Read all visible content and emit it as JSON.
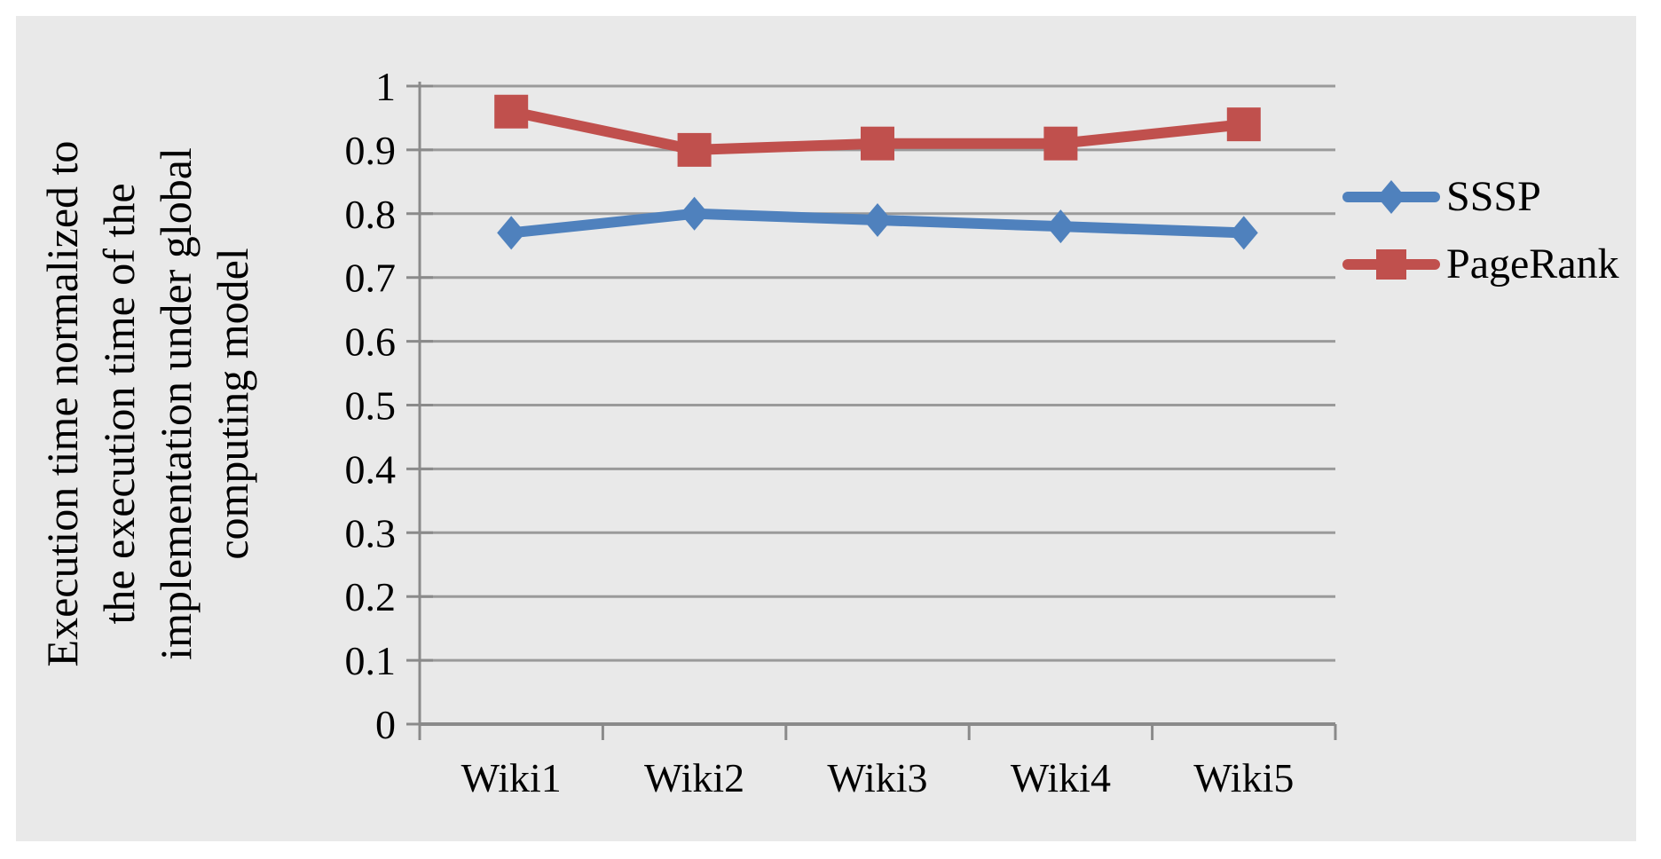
{
  "chart_data": {
    "type": "line",
    "title": "",
    "categories": [
      "Wiki1",
      "Wiki2",
      "Wiki3",
      "Wiki4",
      "Wiki5"
    ],
    "series": [
      {
        "name": "SSSP",
        "marker": "diamond",
        "color": "#4F81BD",
        "values": [
          0.77,
          0.8,
          0.79,
          0.78,
          0.77
        ]
      },
      {
        "name": "PageRank",
        "marker": "square",
        "color": "#C0504D",
        "values": [
          0.96,
          0.9,
          0.91,
          0.91,
          0.94
        ]
      }
    ],
    "xlabel": "",
    "ylabel_lines": [
      "Execution time normalized to",
      "the execution time of the",
      "implementation under global",
      "computing model"
    ],
    "ylim": [
      0,
      1
    ],
    "ytick_step": 0.1,
    "ytick_labels": [
      "0",
      "0.1",
      "0.2",
      "0.3",
      "0.4",
      "0.5",
      "0.6",
      "0.7",
      "0.8",
      "0.9",
      "1"
    ],
    "grid": true,
    "legend_position": "right",
    "colors": {
      "gridline": "#9a9a9a",
      "axis": "#8a8a8a",
      "chart_background": "#e9e9e9",
      "text": "#000000"
    }
  }
}
